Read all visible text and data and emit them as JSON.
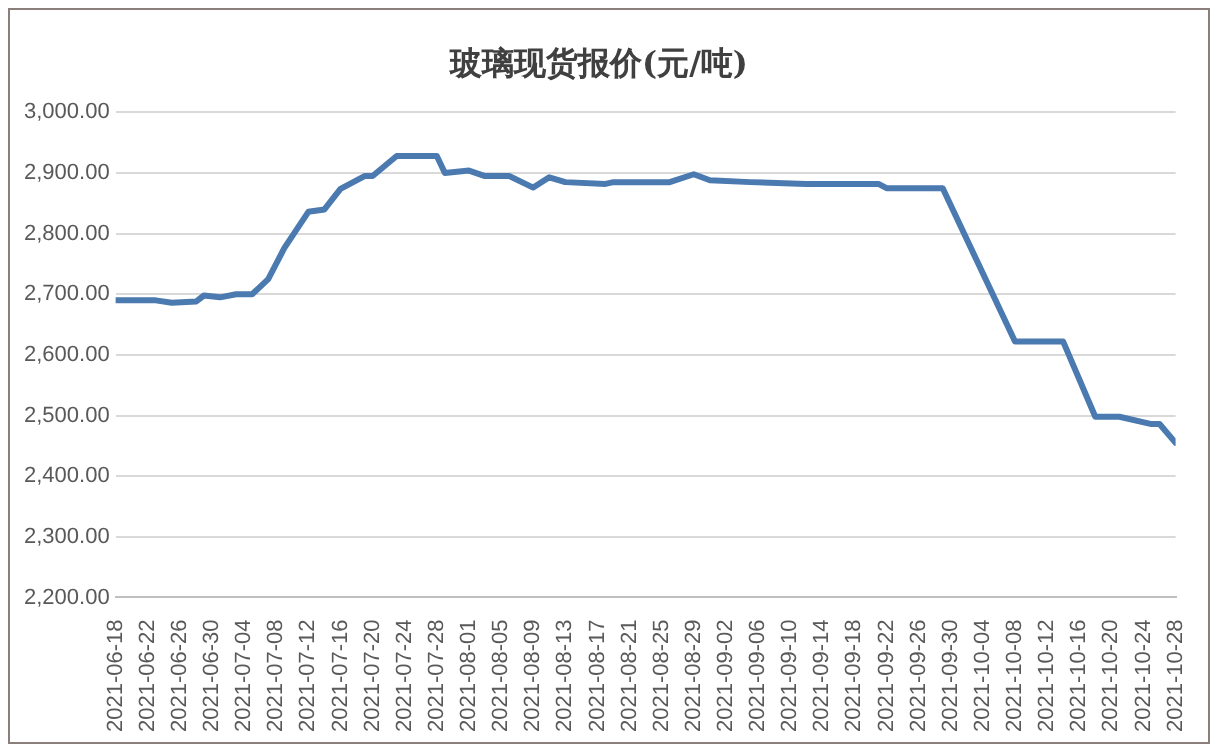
{
  "chart_data": {
    "type": "line",
    "title": "玻璃现货报价(元/吨)",
    "x": [
      "2021-06-18",
      "2021-06-23",
      "2021-06-25",
      "2021-06-28",
      "2021-06-29",
      "2021-07-01",
      "2021-07-03",
      "2021-07-05",
      "2021-07-07",
      "2021-07-09",
      "2021-07-12",
      "2021-07-14",
      "2021-07-16",
      "2021-07-19",
      "2021-07-20",
      "2021-07-23",
      "2021-07-28",
      "2021-07-29",
      "2021-08-01",
      "2021-08-03",
      "2021-08-06",
      "2021-08-09",
      "2021-08-11",
      "2021-08-13",
      "2021-08-18",
      "2021-08-19",
      "2021-08-26",
      "2021-08-29",
      "2021-08-31",
      "2021-09-05",
      "2021-09-12",
      "2021-09-21",
      "2021-09-22",
      "2021-09-29",
      "2021-10-08",
      "2021-10-14",
      "2021-10-18",
      "2021-10-21",
      "2021-10-25",
      "2021-10-26",
      "2021-10-28"
    ],
    "series": [
      {
        "color": "#4a7ab0",
        "values": [
          2690,
          2690,
          2686,
          2688,
          2698,
          2695,
          2700,
          2700,
          2725,
          2776,
          2836,
          2840,
          2874,
          2895,
          2895,
          2928,
          2928,
          2900,
          2904,
          2895,
          2895,
          2876,
          2893,
          2885,
          2882,
          2885,
          2885,
          2898,
          2888,
          2885,
          2882,
          2882,
          2875,
          2875,
          2622,
          2622,
          2498,
          2498,
          2486,
          2486,
          2455
        ]
      }
    ],
    "xlim": [
      "2021-06-18",
      "2021-10-28"
    ],
    "xticks": [
      "2021-06-18",
      "2021-06-22",
      "2021-06-26",
      "2021-06-30",
      "2021-07-04",
      "2021-07-08",
      "2021-07-12",
      "2021-07-16",
      "2021-07-20",
      "2021-07-24",
      "2021-07-28",
      "2021-08-01",
      "2021-08-05",
      "2021-08-09",
      "2021-08-13",
      "2021-08-17",
      "2021-08-21",
      "2021-08-25",
      "2021-08-29",
      "2021-09-02",
      "2021-09-06",
      "2021-09-10",
      "2021-09-14",
      "2021-09-18",
      "2021-09-22",
      "2021-09-26",
      "2021-09-30",
      "2021-10-04",
      "2021-10-08",
      "2021-10-12",
      "2021-10-16",
      "2021-10-20",
      "2021-10-24",
      "2021-10-28"
    ],
    "ylim": [
      2200,
      3000
    ],
    "yticks": [
      {
        "value": 2200,
        "label": "2,200.00"
      },
      {
        "value": 2300,
        "label": "2,300.00"
      },
      {
        "value": 2400,
        "label": "2,400.00"
      },
      {
        "value": 2500,
        "label": "2,500.00"
      },
      {
        "value": 2600,
        "label": "2,600.00"
      },
      {
        "value": 2700,
        "label": "2,700.00"
      },
      {
        "value": 2800,
        "label": "2,800.00"
      },
      {
        "value": 2900,
        "label": "2,900.00"
      },
      {
        "value": 3000,
        "label": "3,000.00"
      }
    ],
    "grid": "y",
    "legend": false,
    "marker": "none",
    "line_style": "solid"
  }
}
